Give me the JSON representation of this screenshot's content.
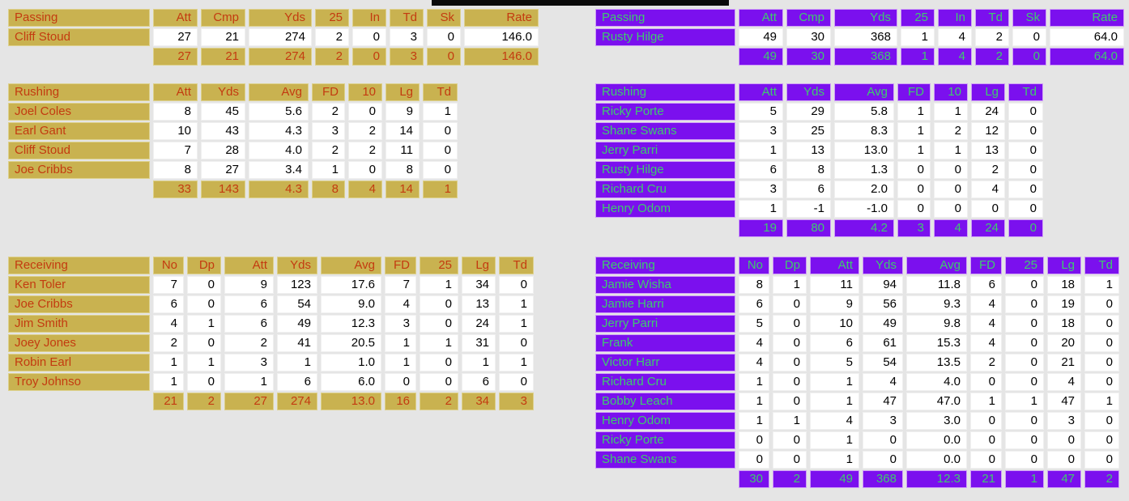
{
  "page": {
    "background": "#e5e5e5",
    "top_banner_color": "#0a0a0a"
  },
  "teams": [
    {
      "id": "left-team",
      "theme": {
        "header_bg": "#c9b250",
        "header_text": "#c33b10",
        "header_edge": "#ddd18c",
        "value_bg": "#ffffff",
        "value_text": "#000000"
      },
      "passing": {
        "title": "Passing",
        "columns": [
          "Att",
          "Cmp",
          "Yds",
          "25",
          "In",
          "Td",
          "Sk",
          "Rate"
        ],
        "rows": [
          {
            "name": "Cliff Stoud",
            "values": [
              "27",
              "21",
              "274",
              "2",
              "0",
              "3",
              "0",
              "146.0"
            ]
          }
        ],
        "totals": [
          "27",
          "21",
          "274",
          "2",
          "0",
          "3",
          "0",
          "146.0"
        ]
      },
      "rushing": {
        "title": "Rushing",
        "columns": [
          "Att",
          "Yds",
          "Avg",
          "FD",
          "10",
          "Lg",
          "Td"
        ],
        "rows": [
          {
            "name": "Joel Coles",
            "values": [
              "8",
              "45",
              "5.6",
              "2",
              "0",
              "9",
              "1"
            ]
          },
          {
            "name": "Earl Gant",
            "values": [
              "10",
              "43",
              "4.3",
              "3",
              "2",
              "14",
              "0"
            ]
          },
          {
            "name": "Cliff Stoud",
            "values": [
              "7",
              "28",
              "4.0",
              "2",
              "2",
              "11",
              "0"
            ]
          },
          {
            "name": "Joe Cribbs",
            "values": [
              "8",
              "27",
              "3.4",
              "1",
              "0",
              "8",
              "0"
            ]
          }
        ],
        "totals": [
          "33",
          "143",
          "4.3",
          "8",
          "4",
          "14",
          "1"
        ]
      },
      "receiving": {
        "title": "Receiving",
        "columns": [
          "No",
          "Dp",
          "Att",
          "Yds",
          "Avg",
          "FD",
          "25",
          "Lg",
          "Td"
        ],
        "rows": [
          {
            "name": "Ken Toler",
            "values": [
              "7",
              "0",
              "9",
              "123",
              "17.6",
              "7",
              "1",
              "34",
              "0"
            ]
          },
          {
            "name": "Joe Cribbs",
            "values": [
              "6",
              "0",
              "6",
              "54",
              "9.0",
              "4",
              "0",
              "13",
              "1"
            ]
          },
          {
            "name": "Jim Smith",
            "values": [
              "4",
              "1",
              "6",
              "49",
              "12.3",
              "3",
              "0",
              "24",
              "1"
            ]
          },
          {
            "name": "Joey Jones",
            "values": [
              "2",
              "0",
              "2",
              "41",
              "20.5",
              "1",
              "1",
              "31",
              "0"
            ]
          },
          {
            "name": "Robin Earl",
            "values": [
              "1",
              "1",
              "3",
              "1",
              "1.0",
              "1",
              "0",
              "1",
              "1"
            ]
          },
          {
            "name": "Troy Johnso",
            "values": [
              "1",
              "0",
              "1",
              "6",
              "6.0",
              "0",
              "0",
              "6",
              "0"
            ]
          }
        ],
        "totals": [
          "21",
          "2",
          "27",
          "274",
          "13.0",
          "16",
          "2",
          "34",
          "3"
        ]
      }
    },
    {
      "id": "right-team",
      "theme": {
        "header_bg": "#7b10ee",
        "header_text": "#3eca6e",
        "header_edge": "#d0a0f6",
        "value_bg": "#ffffff",
        "value_text": "#000000"
      },
      "passing": {
        "title": "Passing",
        "columns": [
          "Att",
          "Cmp",
          "Yds",
          "25",
          "In",
          "Td",
          "Sk",
          "Rate"
        ],
        "rows": [
          {
            "name": "Rusty Hilge",
            "values": [
              "49",
              "30",
              "368",
              "1",
              "4",
              "2",
              "0",
              "64.0"
            ]
          }
        ],
        "totals": [
          "49",
          "30",
          "368",
          "1",
          "4",
          "2",
          "0",
          "64.0"
        ]
      },
      "rushing": {
        "title": "Rushing",
        "columns": [
          "Att",
          "Yds",
          "Avg",
          "FD",
          "10",
          "Lg",
          "Td"
        ],
        "rows": [
          {
            "name": "Ricky Porte",
            "values": [
              "5",
              "29",
              "5.8",
              "1",
              "1",
              "24",
              "0"
            ]
          },
          {
            "name": "Shane Swans",
            "values": [
              "3",
              "25",
              "8.3",
              "1",
              "2",
              "12",
              "0"
            ]
          },
          {
            "name": "Jerry Parri",
            "values": [
              "1",
              "13",
              "13.0",
              "1",
              "1",
              "13",
              "0"
            ]
          },
          {
            "name": "Rusty Hilge",
            "values": [
              "6",
              "8",
              "1.3",
              "0",
              "0",
              "2",
              "0"
            ]
          },
          {
            "name": "Richard Cru",
            "values": [
              "3",
              "6",
              "2.0",
              "0",
              "0",
              "4",
              "0"
            ]
          },
          {
            "name": "Henry Odom",
            "values": [
              "1",
              "-1",
              "-1.0",
              "0",
              "0",
              "0",
              "0"
            ]
          }
        ],
        "totals": [
          "19",
          "80",
          "4.2",
          "3",
          "4",
          "24",
          "0"
        ]
      },
      "receiving": {
        "title": "Receiving",
        "columns": [
          "No",
          "Dp",
          "Att",
          "Yds",
          "Avg",
          "FD",
          "25",
          "Lg",
          "Td"
        ],
        "rows": [
          {
            "name": "Jamie Wisha",
            "values": [
              "8",
              "1",
              "11",
              "94",
              "11.8",
              "6",
              "0",
              "18",
              "1"
            ]
          },
          {
            "name": "Jamie Harri",
            "values": [
              "6",
              "0",
              "9",
              "56",
              "9.3",
              "4",
              "0",
              "19",
              "0"
            ]
          },
          {
            "name": "Jerry Parri",
            "values": [
              "5",
              "0",
              "10",
              "49",
              "9.8",
              "4",
              "0",
              "18",
              "0"
            ]
          },
          {
            "name": "Frank",
            "values": [
              "4",
              "0",
              "6",
              "61",
              "15.3",
              "4",
              "0",
              "20",
              "0"
            ]
          },
          {
            "name": "Victor Harr",
            "values": [
              "4",
              "0",
              "5",
              "54",
              "13.5",
              "2",
              "0",
              "21",
              "0"
            ]
          },
          {
            "name": "Richard Cru",
            "values": [
              "1",
              "0",
              "1",
              "4",
              "4.0",
              "0",
              "0",
              "4",
              "0"
            ]
          },
          {
            "name": "Bobby Leach",
            "values": [
              "1",
              "0",
              "1",
              "47",
              "47.0",
              "1",
              "1",
              "47",
              "1"
            ]
          },
          {
            "name": "Henry Odom",
            "values": [
              "1",
              "1",
              "4",
              "3",
              "3.0",
              "0",
              "0",
              "3",
              "0"
            ]
          },
          {
            "name": "Ricky Porte",
            "values": [
              "0",
              "0",
              "1",
              "0",
              "0.0",
              "0",
              "0",
              "0",
              "0"
            ]
          },
          {
            "name": "Shane Swans",
            "values": [
              "0",
              "0",
              "1",
              "0",
              "0.0",
              "0",
              "0",
              "0",
              "0"
            ]
          }
        ],
        "totals": [
          "30",
          "2",
          "49",
          "368",
          "12.3",
          "21",
          "1",
          "47",
          "2"
        ]
      }
    }
  ]
}
